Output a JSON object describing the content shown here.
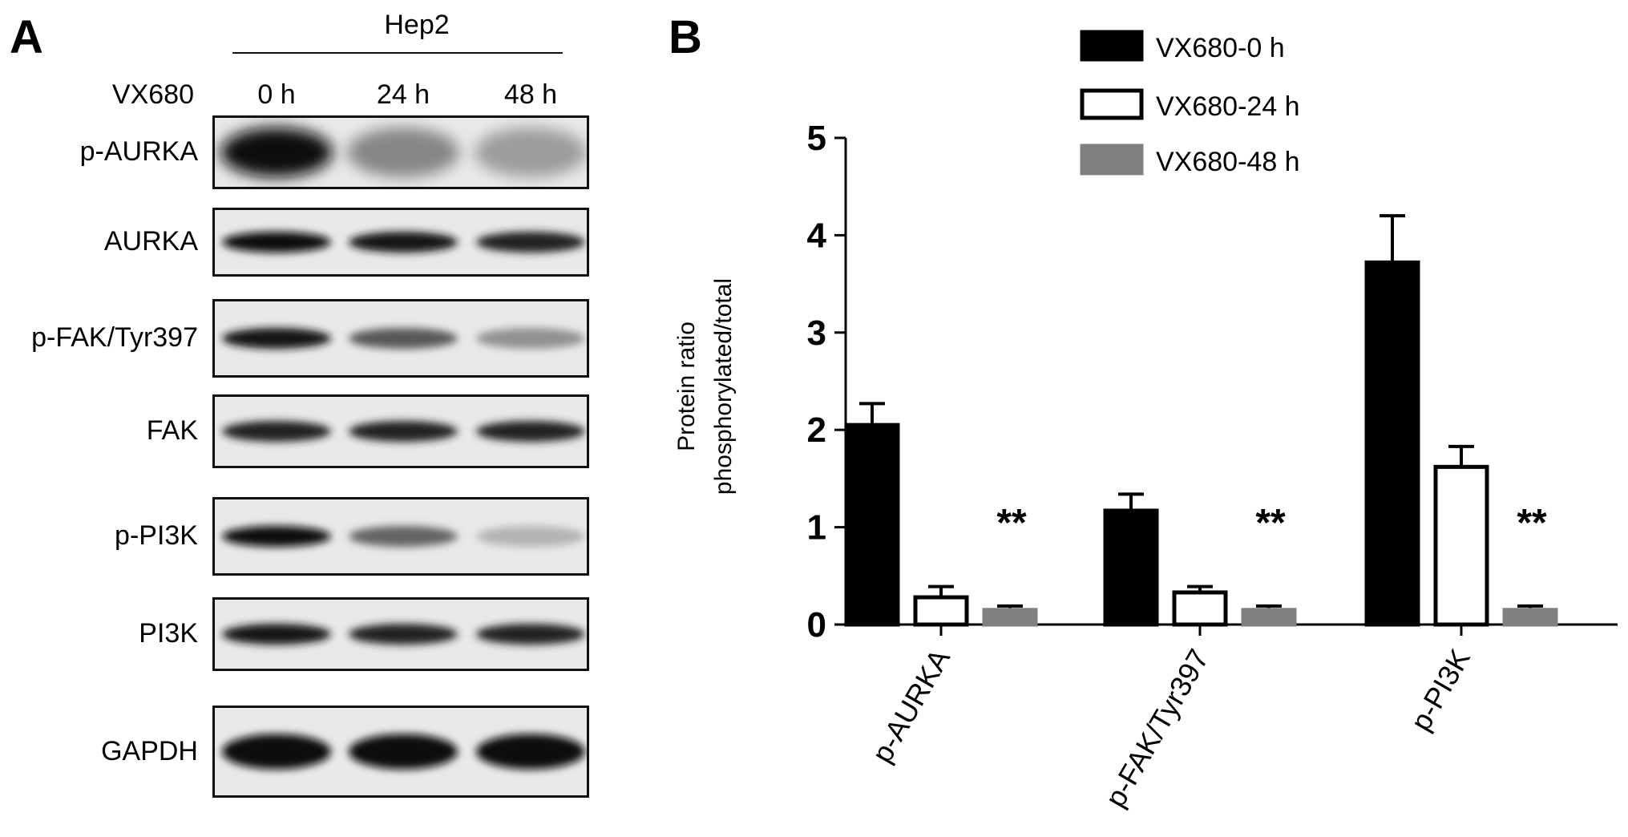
{
  "panel_a": {
    "letter": "A",
    "cell_line": "Hep2",
    "treatment_label": "VX680",
    "lanes": [
      "0 h",
      "24 h",
      "48 h"
    ],
    "blots": [
      {
        "label": "p-AURKA",
        "intensity": [
          1.0,
          0.45,
          0.35
        ],
        "kind": "diffuse"
      },
      {
        "label": "AURKA",
        "intensity": [
          1.0,
          0.95,
          0.9
        ],
        "kind": "band"
      },
      {
        "label": "p-FAK/Tyr397",
        "intensity": [
          0.95,
          0.65,
          0.4
        ],
        "kind": "band"
      },
      {
        "label": "FAK",
        "intensity": [
          0.9,
          0.9,
          0.9
        ],
        "kind": "band"
      },
      {
        "label": "p-PI3K",
        "intensity": [
          1.0,
          0.6,
          0.25
        ],
        "kind": "band"
      },
      {
        "label": "PI3K",
        "intensity": [
          0.95,
          0.9,
          0.9
        ],
        "kind": "band"
      },
      {
        "label": "GAPDH",
        "intensity": [
          1.0,
          1.0,
          1.0
        ],
        "kind": "band"
      }
    ]
  },
  "panel_b": {
    "letter": "B"
  },
  "chart_data": {
    "type": "bar",
    "categories": [
      "p-AURKA",
      "p-FAK/Tyr397",
      "p-PI3K"
    ],
    "series": [
      {
        "name": "VX680-0 h",
        "values": [
          2.05,
          1.17,
          3.72
        ],
        "errors": [
          0.22,
          0.17,
          0.48
        ],
        "fill": "#000000"
      },
      {
        "name": "VX680-24 h",
        "values": [
          0.28,
          0.33,
          1.62
        ],
        "errors": [
          0.11,
          0.06,
          0.21
        ],
        "fill": "#ffffff"
      },
      {
        "name": "VX680-48 h",
        "values": [
          0.15,
          0.15,
          0.15
        ],
        "errors": [
          0.04,
          0.04,
          0.04
        ],
        "fill": "#808080"
      }
    ],
    "annotations": [
      {
        "category": "p-AURKA",
        "text": "**"
      },
      {
        "category": "p-FAK/Tyr397",
        "text": "**"
      },
      {
        "category": "p-PI3K",
        "text": "**"
      }
    ],
    "ylabel_line1": "Protein ratio",
    "ylabel_line2": "phosphorylated/total",
    "ylim": [
      0,
      5
    ],
    "yticks": [
      0,
      1,
      2,
      3,
      4,
      5
    ],
    "legend_position": "top",
    "grid": false
  }
}
